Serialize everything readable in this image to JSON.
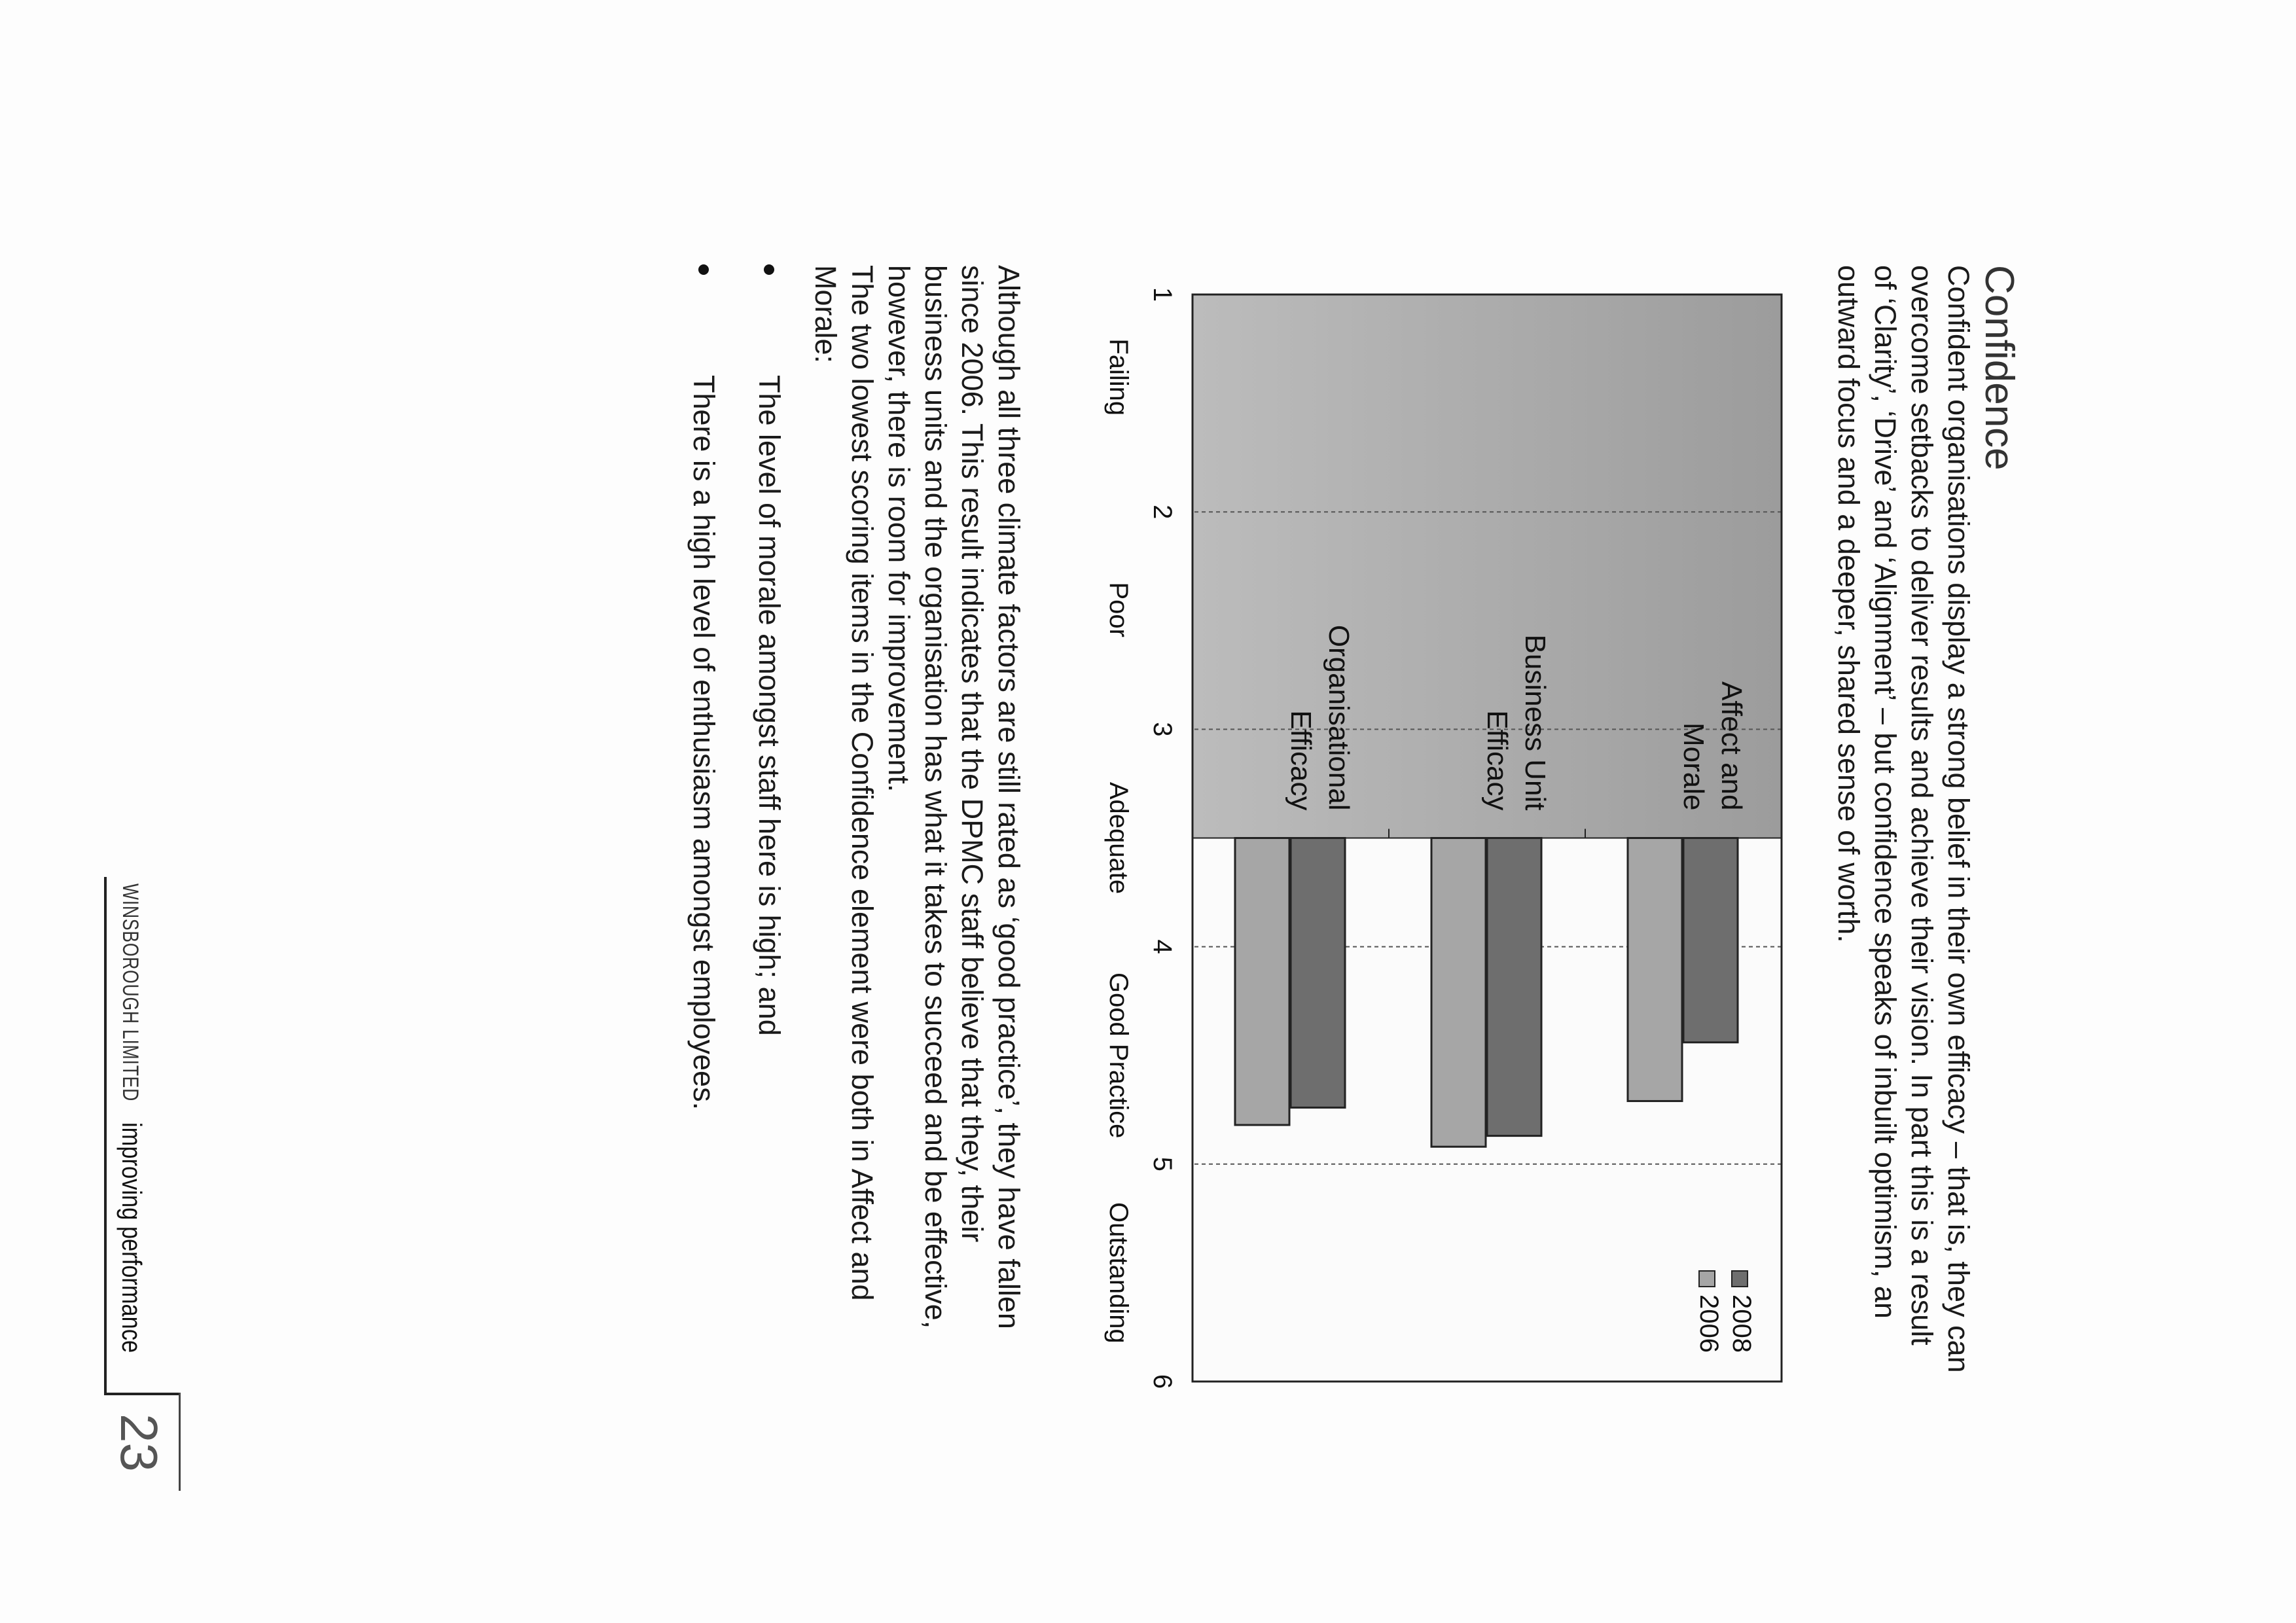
{
  "page": {
    "title": "Confidence",
    "intro_lines": [
      "Confident organisations display a strong belief in their own efficacy – that is, they can",
      "overcome setbacks to deliver results and achieve their vision.  In part this is a result",
      "of ‘Clarity’, ‘Drive’ and ‘Alignment’ – but confidence speaks of inbuilt optimism, an",
      "outward focus and a deeper, shared sense of worth."
    ],
    "analysis_lines": [
      "Although all three climate factors are still rated as ‘good practice’, they have fallen",
      "since 2006.  This result indicates that the DPMC staff believe that they, their",
      "business units and the organisation has what it takes to succeed and be effective,",
      "however, there is room for improvement."
    ],
    "lowest_lines": [
      "The two lowest scoring items in the Confidence element were both in Affect and",
      "Morale:"
    ],
    "bullets": [
      "The level of morale amongst staff here is high; and",
      "There is a high level of enthusiasm amongst employees."
    ],
    "footer": {
      "company": "WINSBOROUGH LIMITED",
      "tagline": "improving performance",
      "page_number": "23"
    }
  },
  "chart_data": {
    "type": "bar",
    "orientation": "horizontal",
    "categories": [
      "Affect and Morale",
      "Business Unit Efficacy",
      "Organisational Efficacy"
    ],
    "category_lines": [
      [
        "Affect and",
        "Morale"
      ],
      [
        "Business Unit",
        "Efficacy"
      ],
      [
        "Organisational",
        "Efficacy"
      ]
    ],
    "series": [
      {
        "name": "2008",
        "values": [
          4.44,
          4.87,
          4.74
        ],
        "color": "#6e6e6e"
      },
      {
        "name": "2006",
        "values": [
          4.71,
          4.92,
          4.82
        ],
        "color": "#a6a6a6"
      }
    ],
    "baseline": 3.5,
    "xlim": [
      1,
      6
    ],
    "xticks": [
      "1",
      "2",
      "3",
      "4",
      "5",
      "6"
    ],
    "rating_labels": [
      "Failing",
      "Poor",
      "Adequate",
      "Good Practice",
      "Outstanding"
    ],
    "shaded_range": [
      1,
      3.5
    ],
    "shade_color": "#ababab",
    "grid": true,
    "legend": "top-right"
  }
}
